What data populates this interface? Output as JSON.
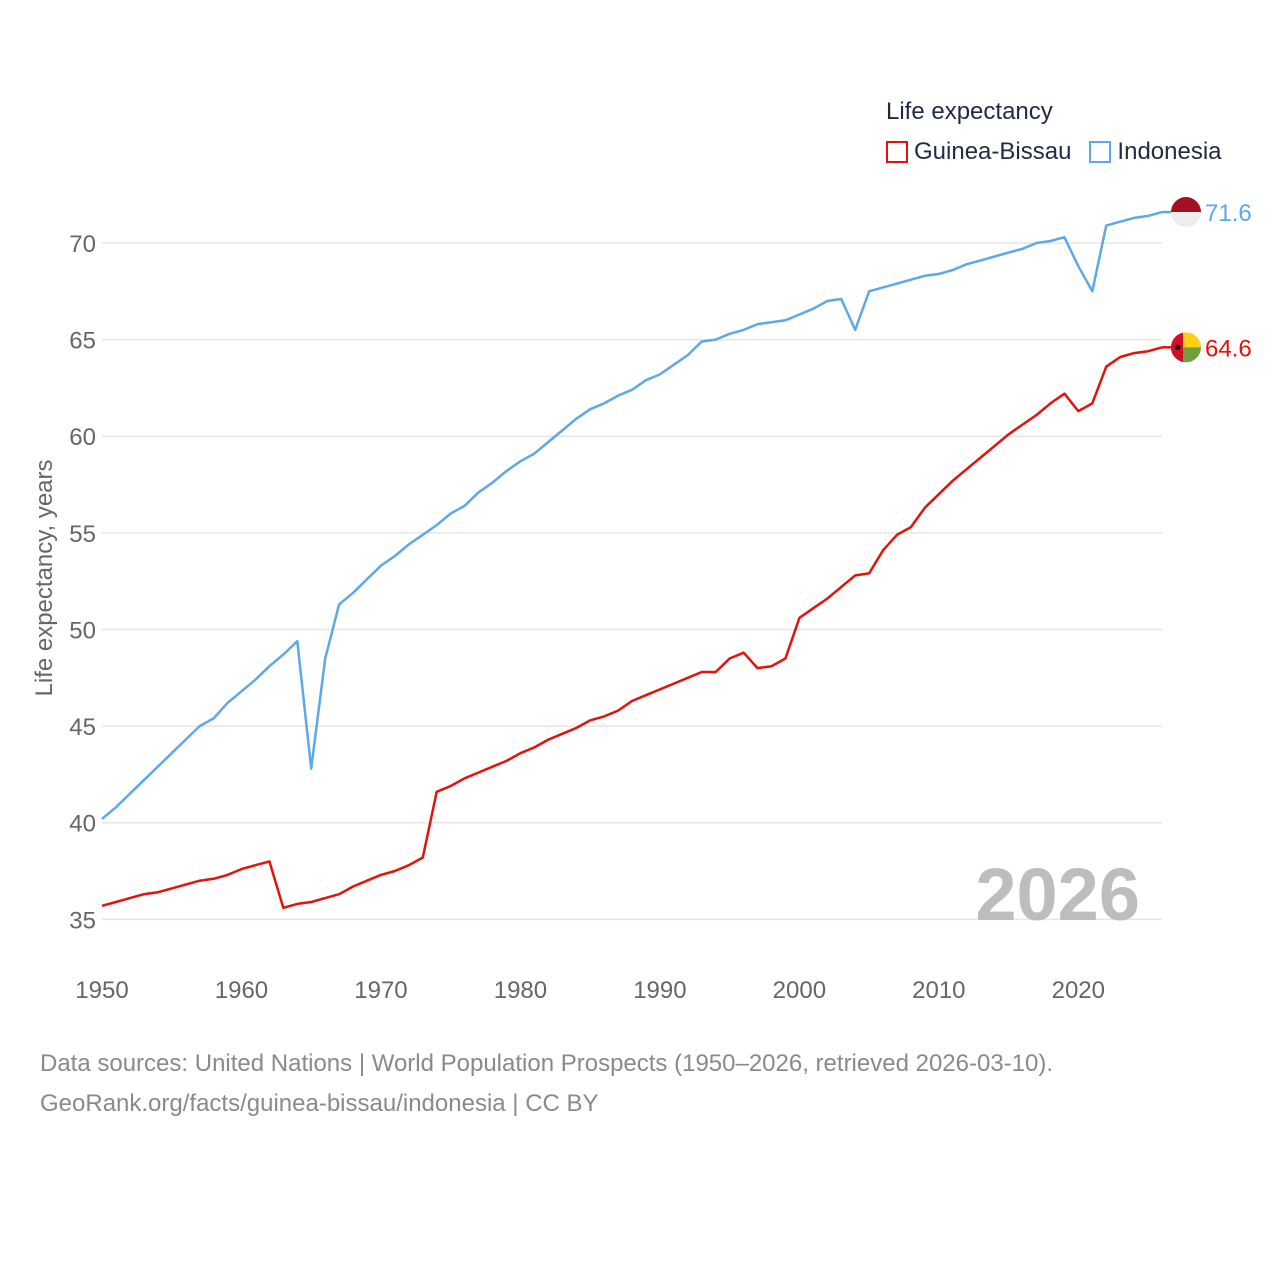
{
  "legend": {
    "title": "Life expectancy",
    "items": [
      {
        "label": "Guinea-Bissau",
        "color": "#e3120b"
      },
      {
        "label": "Indonesia",
        "color": "#5ea8e6"
      }
    ]
  },
  "footer": {
    "line1": "Data sources: United Nations | World Population Prospects (1950–2026, retrieved 2026-03-10).",
    "line2": "GeoRank.org/facts/guinea-bissau/indonesia | CC BY"
  },
  "chart_data": {
    "type": "line",
    "title": "Life expectancy",
    "xlabel": "",
    "ylabel": "Life expectancy, years",
    "watermark": "2026",
    "xlim": [
      1950,
      2026
    ],
    "ylim": [
      33,
      73
    ],
    "x_ticks": [
      1950,
      1960,
      1970,
      1980,
      1990,
      2000,
      2010,
      2020
    ],
    "y_ticks": [
      35,
      40,
      45,
      50,
      55,
      60,
      65,
      70
    ],
    "grid": true,
    "legend_position": "top-right",
    "series": [
      {
        "name": "Guinea-Bissau",
        "color": "#e3120b",
        "end_label": "64.6",
        "flag": "guinea-bissau",
        "x": [
          1950,
          1951,
          1952,
          1953,
          1954,
          1955,
          1956,
          1957,
          1958,
          1959,
          1960,
          1961,
          1962,
          1963,
          1964,
          1965,
          1966,
          1967,
          1968,
          1969,
          1970,
          1971,
          1972,
          1973,
          1974,
          1975,
          1976,
          1977,
          1978,
          1979,
          1980,
          1981,
          1982,
          1983,
          1984,
          1985,
          1986,
          1987,
          1988,
          1989,
          1990,
          1991,
          1992,
          1993,
          1994,
          1995,
          1996,
          1997,
          1998,
          1999,
          2000,
          2001,
          2002,
          2003,
          2004,
          2005,
          2006,
          2007,
          2008,
          2009,
          2010,
          2011,
          2012,
          2013,
          2014,
          2015,
          2016,
          2017,
          2018,
          2019,
          2020,
          2021,
          2022,
          2023,
          2024,
          2025,
          2026
        ],
        "values": [
          35.7,
          35.9,
          36.1,
          36.3,
          36.4,
          36.6,
          36.8,
          37.0,
          37.1,
          37.3,
          37.6,
          37.8,
          38.0,
          35.6,
          35.8,
          35.9,
          36.1,
          36.3,
          36.7,
          37.0,
          37.3,
          37.5,
          37.8,
          38.2,
          41.6,
          41.9,
          42.3,
          42.6,
          42.9,
          43.2,
          43.6,
          43.9,
          44.3,
          44.6,
          44.9,
          45.3,
          45.5,
          45.8,
          46.3,
          46.6,
          46.9,
          47.2,
          47.5,
          47.8,
          47.8,
          48.5,
          48.8,
          48.0,
          48.1,
          48.5,
          50.6,
          51.1,
          51.6,
          52.2,
          52.8,
          52.9,
          54.1,
          54.9,
          55.3,
          56.3,
          57.0,
          57.7,
          58.3,
          58.9,
          59.5,
          60.1,
          60.6,
          61.1,
          61.7,
          62.2,
          61.3,
          61.7,
          63.6,
          64.1,
          64.3,
          64.4,
          64.6
        ]
      },
      {
        "name": "Indonesia",
        "color": "#5ea8e6",
        "end_label": "71.6",
        "flag": "indonesia",
        "x": [
          1950,
          1951,
          1952,
          1953,
          1954,
          1955,
          1956,
          1957,
          1958,
          1959,
          1960,
          1961,
          1962,
          1963,
          1964,
          1965,
          1966,
          1967,
          1968,
          1969,
          1970,
          1971,
          1972,
          1973,
          1974,
          1975,
          1976,
          1977,
          1978,
          1979,
          1980,
          1981,
          1982,
          1983,
          1984,
          1985,
          1986,
          1987,
          1988,
          1989,
          1990,
          1991,
          1992,
          1993,
          1994,
          1995,
          1996,
          1997,
          1998,
          1999,
          2000,
          2001,
          2002,
          2003,
          2004,
          2005,
          2006,
          2007,
          2008,
          2009,
          2010,
          2011,
          2012,
          2013,
          2014,
          2015,
          2016,
          2017,
          2018,
          2019,
          2020,
          2021,
          2022,
          2023,
          2024,
          2025,
          2026
        ],
        "values": [
          40.2,
          40.8,
          41.5,
          42.2,
          42.9,
          43.6,
          44.3,
          45.0,
          45.4,
          46.2,
          46.8,
          47.4,
          48.1,
          48.7,
          49.4,
          42.8,
          48.5,
          51.3,
          51.9,
          52.6,
          53.3,
          53.8,
          54.4,
          54.9,
          55.4,
          56.0,
          56.4,
          57.1,
          57.6,
          58.2,
          58.7,
          59.1,
          59.7,
          60.3,
          60.9,
          61.4,
          61.7,
          62.1,
          62.4,
          62.9,
          63.2,
          63.7,
          64.2,
          64.9,
          65.0,
          65.3,
          65.5,
          65.8,
          65.9,
          66.0,
          66.3,
          66.6,
          67.0,
          67.1,
          65.5,
          67.5,
          67.7,
          67.9,
          68.1,
          68.3,
          68.4,
          68.6,
          68.9,
          69.1,
          69.3,
          69.5,
          69.7,
          70.0,
          70.1,
          70.3,
          68.8,
          67.5,
          70.9,
          71.1,
          71.3,
          71.4,
          71.6
        ]
      }
    ]
  }
}
